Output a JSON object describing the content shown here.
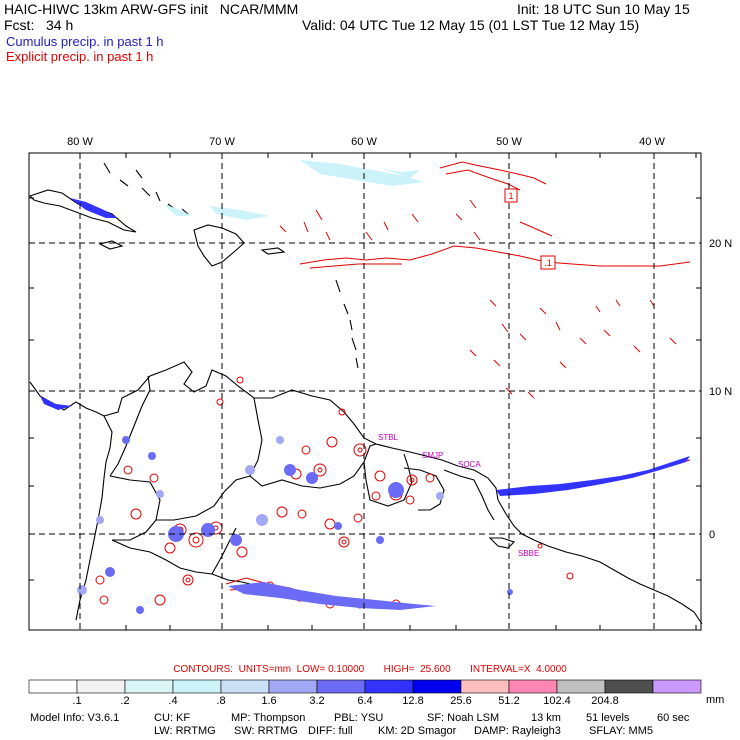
{
  "header": {
    "line1_left": "HAIC-HIWC 13km ARW-GFS init   NCAR/MMM",
    "line1_right": "Init: 18 UTC Sun 10 May 15",
    "line2_left": "Fcst:   34 h",
    "line2_right": "Valid: 04 UTC Tue 12 May 15 (01 LST Tue 12 May 15)",
    "legend_cumulus": "Cumulus precip. in past 1 h",
    "legend_explicit": "Explicit precip. in past 1 h"
  },
  "colors": {
    "cumulus": "#2020c0",
    "explicit": "#e00000",
    "label_magenta": "#c000c0"
  },
  "map": {
    "lon_labels": [
      "80 W",
      "70 W",
      "60 W",
      "50 W",
      "40 W"
    ],
    "lat_labels": [
      "20 N",
      "10 N",
      "0"
    ],
    "station_labels": [
      "STBL",
      "SMJP",
      "SOCA",
      "SBBE"
    ],
    "box_labels": [
      "1",
      ".1"
    ]
  },
  "contours": {
    "text": "CONTOURS:  UNITS=mm  LOW= 0.10000       HIGH=  25.600       INTERVAL=X  4.0000"
  },
  "colorbar": {
    "labels": [
      ".1",
      ".2",
      ".4",
      ".8",
      "1.6",
      "3.2",
      "6.4",
      "12.8",
      "25.6",
      "51.2",
      "102.4",
      "204.8"
    ],
    "fills": [
      "#ffffff",
      "#f2f2f2",
      "#d9f5f5",
      "#ccf2fa",
      "#c9e0f7",
      "#a3a8f5",
      "#6b6bf5",
      "#3333ff",
      "#0000f0",
      "#ffbfbf",
      "#ff85b3",
      "#c0c0c0",
      "#4f4f4f",
      "#cc99ff"
    ],
    "units": "mm"
  },
  "model_info": {
    "line1_a": "Model Info: V3.6.1",
    "line1_b": "CU: KF",
    "line1_c": "MP: Thompson",
    "line1_d": "PBL: YSU",
    "line1_e": "SF: Noah LSM",
    "line1_f": "13 km",
    "line1_g": "51 levels",
    "line1_h": "60 sec",
    "line2_a": "LW: RRTMG",
    "line2_b": "SW: RRTMG",
    "line2_c": "DIFF: full",
    "line2_d": "KM: 2D Smagor",
    "line2_e": "DAMP: Rayleigh3",
    "line2_f": "SFLAY: MM5"
  }
}
